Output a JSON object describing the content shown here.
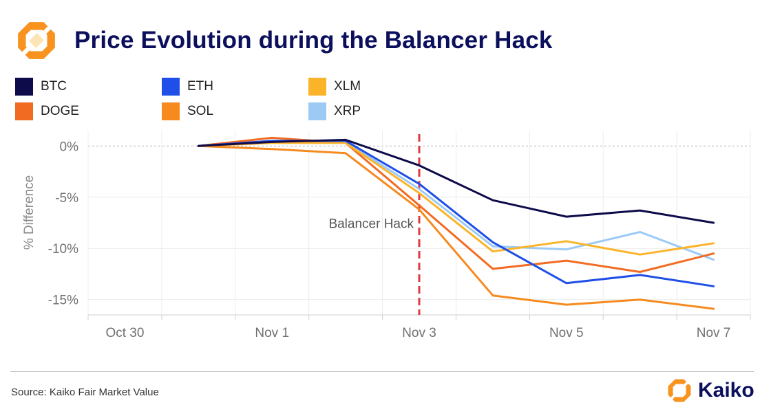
{
  "header": {
    "title": "Price Evolution during the Balancer Hack",
    "logo_icon": "kaiko-logo-icon"
  },
  "colors": {
    "title": "#0b0f5c",
    "event_line": "#e0383e",
    "grid": "#ececec",
    "zero_line": "#b0b0b0",
    "axis_text": "#707070",
    "brand_orange": "#f7931e"
  },
  "chart_data": {
    "type": "line",
    "title": "Price Evolution during the Balancer Hack",
    "xlabel": "",
    "ylabel": "% Difference",
    "x": [
      "Oct 30",
      "Oct 31",
      "Nov 1",
      "Nov 2",
      "Nov 3",
      "Nov 4",
      "Nov 5",
      "Nov 6",
      "Nov 7"
    ],
    "x_tick_labels": [
      "Oct 30",
      "Nov 1",
      "Nov 3",
      "Nov 5",
      "Nov 7"
    ],
    "y_tick_labels": [
      "0%",
      "-5%",
      "-10%",
      "-15%"
    ],
    "y_ticks": [
      0,
      -5,
      -10,
      -15
    ],
    "ylim": [
      -16.5,
      1.5
    ],
    "grid": true,
    "legend_position": "top-left",
    "annotations": [
      {
        "text": "Balancer Hack",
        "x": "Nov 3",
        "style": "dashed vertical line"
      }
    ],
    "series": [
      {
        "name": "BTC",
        "color": "#0d0b4a",
        "values": [
          null,
          0.0,
          0.4,
          0.6,
          -1.9,
          -5.3,
          -6.9,
          -6.3,
          -7.5
        ]
      },
      {
        "name": "ETH",
        "color": "#1f4fe8",
        "values": [
          null,
          0.0,
          0.5,
          0.5,
          -3.7,
          -9.4,
          -13.4,
          -12.6,
          -13.7
        ]
      },
      {
        "name": "XLM",
        "color": "#fbb42a",
        "values": [
          null,
          0.0,
          0.3,
          0.3,
          -4.6,
          -10.3,
          -9.3,
          -10.6,
          -9.5
        ]
      },
      {
        "name": "DOGE",
        "color": "#f26b22",
        "values": [
          null,
          0.0,
          0.8,
          0.3,
          -5.8,
          -12.0,
          -11.2,
          -12.3,
          -10.5
        ]
      },
      {
        "name": "SOL",
        "color": "#f68a1f",
        "values": [
          null,
          0.0,
          -0.3,
          -0.7,
          -6.2,
          -14.6,
          -15.5,
          -15.0,
          -15.9
        ]
      },
      {
        "name": "XRP",
        "color": "#9ccaf5",
        "values": [
          null,
          0.0,
          0.5,
          0.4,
          -4.2,
          -9.8,
          -10.1,
          -8.4,
          -11.1
        ]
      }
    ]
  },
  "footer": {
    "source": "Source: Kaiko Fair Market Value",
    "brand_name": "Kaiko",
    "brand_icon": "kaiko-logo-icon"
  }
}
